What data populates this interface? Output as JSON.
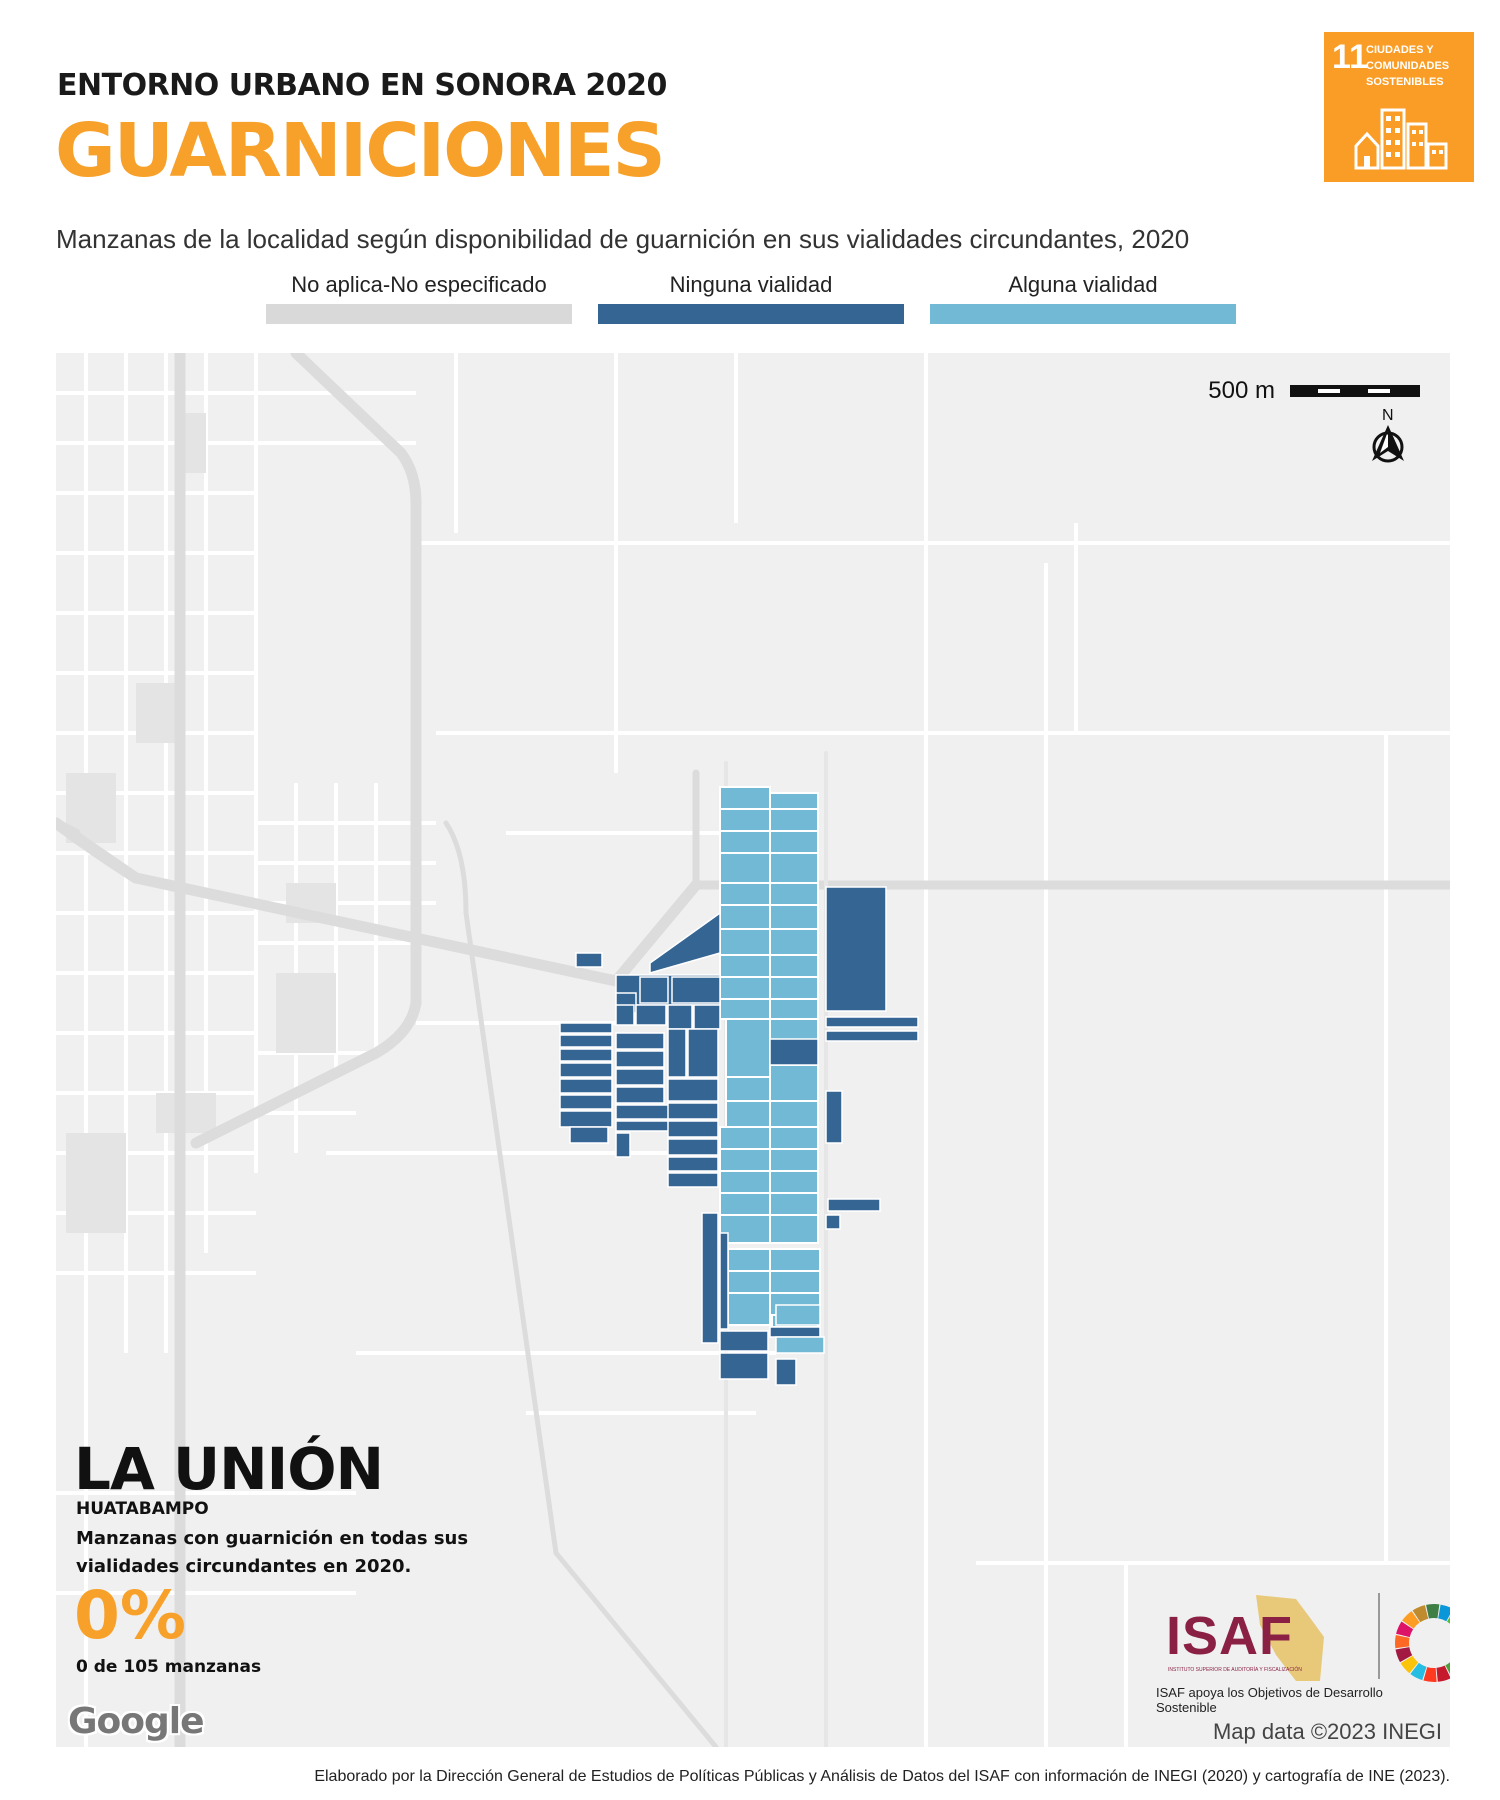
{
  "header": {
    "supertitle": "ENTORNO URBANO EN SONORA 2020",
    "title": "GUARNICIONES",
    "subtitle": "Manzanas de la localidad según disponibilidad de guarnición en sus vialidades circundantes, 2020"
  },
  "sdg_badge": {
    "number": "11",
    "text": "CIUDADES Y COMUNIDADES SOSTENIBLES",
    "color": "#f99d26"
  },
  "legend": [
    {
      "label": "No aplica-No especificado",
      "color": "#d9d9d9"
    },
    {
      "label": "Ninguna vialidad",
      "color": "#356593"
    },
    {
      "label": "Alguna vialidad",
      "color": "#72b9d5"
    }
  ],
  "map": {
    "scale_label": "500 m",
    "north_label": "N",
    "attribution": "Map data ©2023 INEGI",
    "google_label": "Google",
    "background_color": "#f0f0f0",
    "road_color": "#dcdcdc"
  },
  "locality": {
    "name": "LA UNIÓN",
    "municipality": "HUATABAMPO",
    "description": "Manzanas con guarnición en todas sus vialidades circundantes en 2020.",
    "percent": "0%",
    "count": "0 de 105 manzanas"
  },
  "isaf": {
    "logo": "ISAF",
    "small_text": "INSTITUTO SUPERIOR DE AUDITORÍA Y FISCALIZACIÓN",
    "caption": "ISAF apoya los Objetivos de Desarrollo Sostenible"
  },
  "footer": "Elaborado por la Dirección General de Estudios de Políticas Públicas y Análisis de Datos del ISAF con información de INEGI (2020) y cartografía de INE (2023)."
}
